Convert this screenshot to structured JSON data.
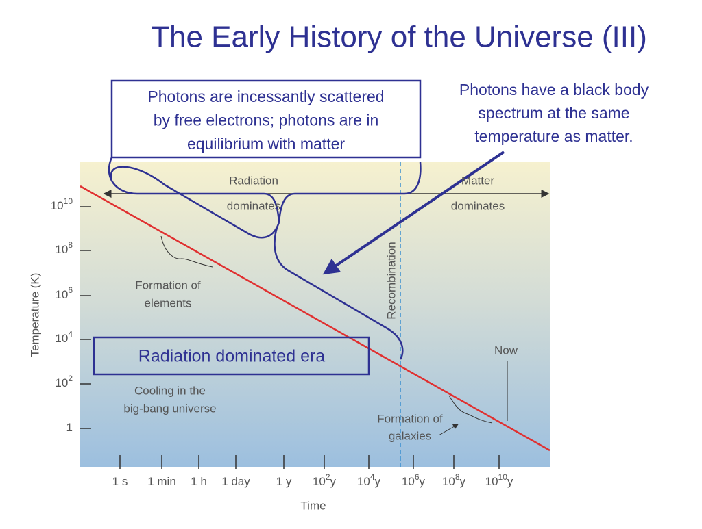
{
  "header": {
    "title": "The Early History of the Universe (III)"
  },
  "callouts": {
    "box": [
      "Photons are incessantly scattered",
      "by free electrons; photons are in",
      "equilibrium with matter"
    ],
    "note": [
      "Photons have a black body",
      "spectrum at the same",
      "temperature as matter."
    ],
    "era": "Radiation dominated era"
  },
  "figure": {
    "y_label": "Temperature (K)",
    "x_label": "Time",
    "y_ticks": [
      {
        "base": "10",
        "exp": "10"
      },
      {
        "base": "10",
        "exp": "8"
      },
      {
        "base": "10",
        "exp": "6"
      },
      {
        "base": "10",
        "exp": "4"
      },
      {
        "base": "10",
        "exp": "2"
      },
      {
        "base": "1",
        "exp": ""
      }
    ],
    "x_ticks": [
      {
        "base": "1 s",
        "exp": "",
        "unit": ""
      },
      {
        "base": "1 min",
        "exp": "",
        "unit": ""
      },
      {
        "base": "1 h",
        "exp": "",
        "unit": ""
      },
      {
        "base": "1 day",
        "exp": "",
        "unit": ""
      },
      {
        "base": "1 y",
        "exp": "",
        "unit": ""
      },
      {
        "base": "10",
        "exp": "2",
        "unit": "y"
      },
      {
        "base": "10",
        "exp": "4",
        "unit": "y"
      },
      {
        "base": "10",
        "exp": "6",
        "unit": "y"
      },
      {
        "base": "10",
        "exp": "8",
        "unit": "y"
      },
      {
        "base": "10",
        "exp": "10",
        "unit": "y"
      }
    ],
    "labels": {
      "radiation": [
        "Radiation",
        "dominates"
      ],
      "matter": [
        "Matter",
        "dominates"
      ],
      "recombination": "Recombination",
      "elements": [
        "Formation of",
        "elements"
      ],
      "cooling": [
        "Cooling in the",
        "big-bang universe"
      ],
      "now": "Now",
      "galaxies": [
        "Formation of",
        "galaxies"
      ]
    }
  }
}
